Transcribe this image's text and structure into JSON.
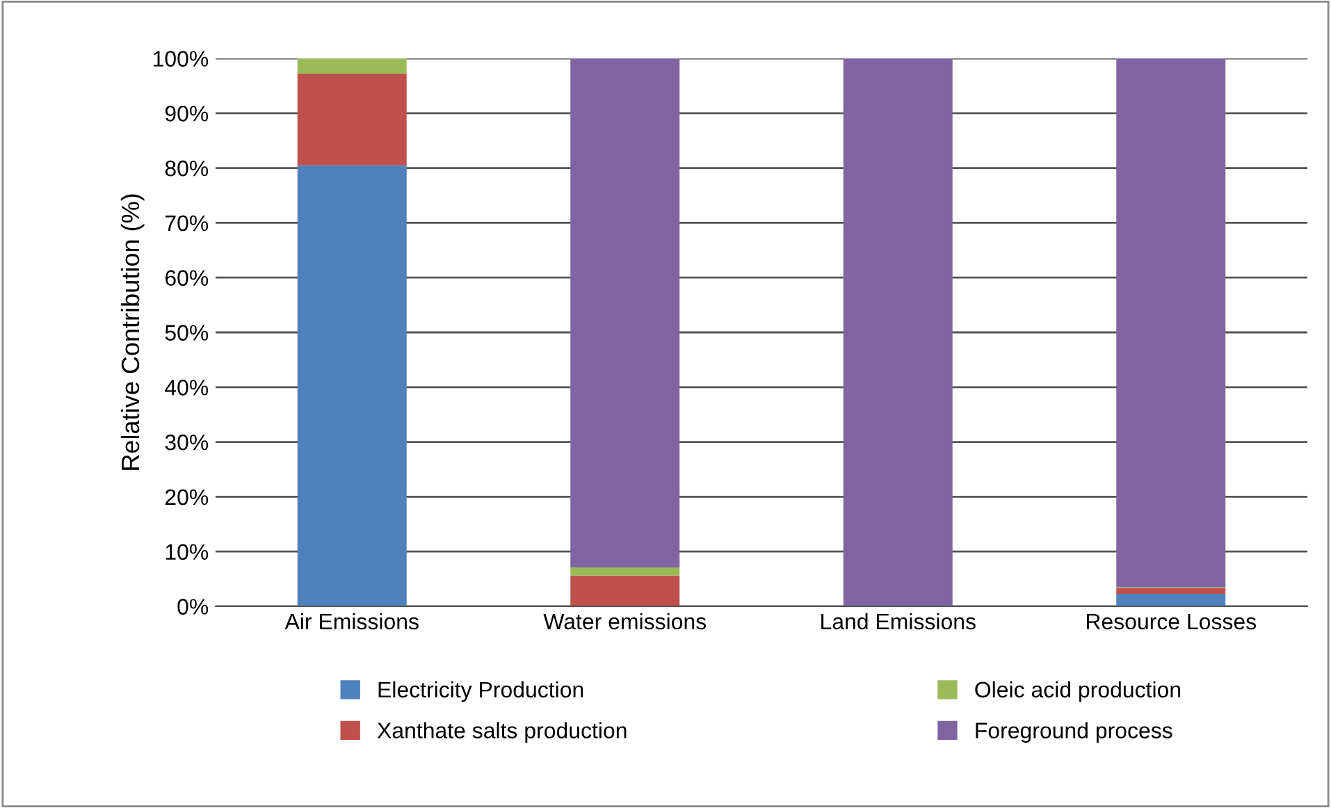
{
  "chart_data": {
    "type": "bar",
    "stacked": true,
    "ylabel": "Relative Contribution (%)",
    "categories": [
      "Air Emissions",
      "Water emissions",
      "Land Emissions",
      "Resource Losses"
    ],
    "series": [
      {
        "name": "Electricity Production",
        "color": "#4f81bd",
        "values": [
          80.5,
          0,
          0,
          2.3
        ]
      },
      {
        "name": "Xanthate salts production",
        "color": "#c0504d",
        "values": [
          16.7,
          5.6,
          0,
          1.0
        ]
      },
      {
        "name": "Oleic acid production",
        "color": "#9bbb59",
        "values": [
          2.8,
          1.5,
          0,
          0.2
        ]
      },
      {
        "name": "Foreground process",
        "color": "#8064a2",
        "values": [
          0,
          92.9,
          100,
          96.5
        ]
      }
    ],
    "ylim": [
      0,
      100
    ],
    "yticks": [
      {
        "value": 0,
        "label": "0%"
      },
      {
        "value": 10,
        "label": "10%"
      },
      {
        "value": 20,
        "label": "20%"
      },
      {
        "value": 30,
        "label": "30%"
      },
      {
        "value": 40,
        "label": "40%"
      },
      {
        "value": 50,
        "label": "50%"
      },
      {
        "value": 60,
        "label": "60%"
      },
      {
        "value": 70,
        "label": "70%"
      },
      {
        "value": 80,
        "label": "80%"
      },
      {
        "value": 90,
        "label": "90%"
      },
      {
        "value": 100,
        "label": "100%"
      }
    ],
    "grid": "y",
    "legend": "bottom"
  }
}
